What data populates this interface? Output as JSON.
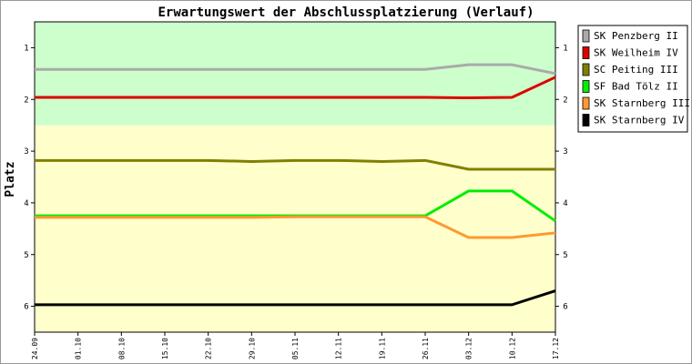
{
  "chart_data": {
    "type": "line",
    "title": "Erwartungswert der Abschlussplatzierung (Verlauf)",
    "ylabel": "Platz",
    "xlabel": "",
    "ylim": [
      0.5,
      6.5
    ],
    "y_ticks": [
      1,
      2,
      3,
      4,
      5,
      6
    ],
    "y_reversed": true,
    "x_labels": [
      "24.09",
      "01.10",
      "08.10",
      "15.10",
      "22.10",
      "29.10",
      "05.11",
      "12.11",
      "19.11",
      "26.11",
      "03.12",
      "10.12",
      "17.12"
    ],
    "bands": [
      {
        "from": 0.5,
        "to": 2.5,
        "color": "#ccffcc"
      },
      {
        "from": 2.5,
        "to": 6.5,
        "color": "#ffffcc"
      }
    ],
    "legend_position": "right",
    "series": [
      {
        "name": "SK Penzberg II",
        "color": "#aaaaaa",
        "values": [
          1.42,
          1.42,
          1.42,
          1.42,
          1.42,
          1.42,
          1.42,
          1.42,
          1.42,
          1.42,
          1.33,
          1.33,
          1.5
        ]
      },
      {
        "name": "SK Weilheim IV",
        "color": "#dd0000",
        "values": [
          1.96,
          1.96,
          1.96,
          1.96,
          1.96,
          1.96,
          1.96,
          1.96,
          1.96,
          1.96,
          1.97,
          1.96,
          1.57
        ]
      },
      {
        "name": "SC Peiting III",
        "color": "#808000",
        "values": [
          3.18,
          3.18,
          3.18,
          3.18,
          3.18,
          3.2,
          3.18,
          3.18,
          3.2,
          3.18,
          3.35,
          3.35,
          3.35
        ]
      },
      {
        "name": "SF Bad Tölz II",
        "color": "#00ee00",
        "values": [
          4.25,
          4.25,
          4.25,
          4.25,
          4.25,
          4.25,
          4.25,
          4.25,
          4.25,
          4.25,
          3.77,
          3.77,
          4.35
        ]
      },
      {
        "name": "SK Starnberg III",
        "color": "#ff9933",
        "values": [
          4.28,
          4.28,
          4.28,
          4.28,
          4.28,
          4.28,
          4.27,
          4.27,
          4.27,
          4.27,
          4.67,
          4.67,
          4.58
        ]
      },
      {
        "name": "SK Starnberg IV",
        "color": "#000000",
        "values": [
          5.97,
          5.97,
          5.97,
          5.97,
          5.97,
          5.97,
          5.97,
          5.97,
          5.97,
          5.97,
          5.97,
          5.97,
          5.7
        ]
      }
    ]
  }
}
